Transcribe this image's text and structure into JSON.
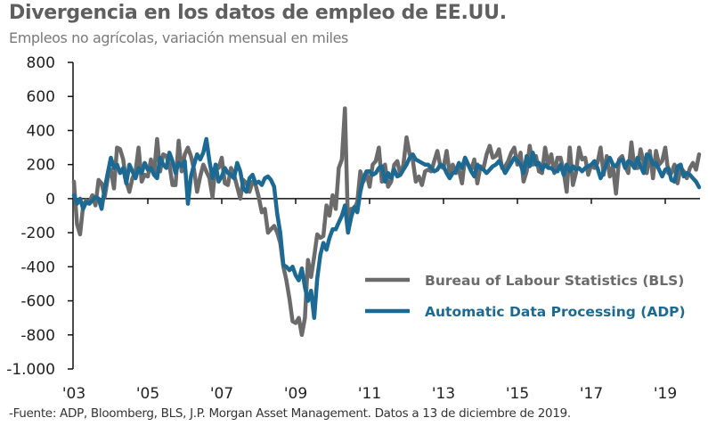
{
  "title": "Divergencia en los datos de empleo de EE.UU.",
  "subtitle": "Empleos no agrícolas, variación mensual en miles",
  "footer": "-Fuente: ADP, Bloomberg, BLS, J.P. Morgan Asset Management. Datos a 13 de diciembre de 2019.",
  "chart_data": {
    "type": "line",
    "title": "Divergencia en los datos de empleo de EE.UU.",
    "subtitle": "Empleos no agrícolas, variación mensual en miles",
    "xlabel": "",
    "ylabel": "",
    "x_start": "2003-01",
    "x_end": "2019-11",
    "x_frequency": "monthly",
    "xlim": [
      2003,
      2020
    ],
    "ylim": [
      -1000,
      800
    ],
    "y_ticks": [
      800,
      600,
      400,
      200,
      0,
      -200,
      -400,
      -600,
      -800,
      -1000
    ],
    "y_tick_labels": [
      "800",
      "600",
      "400",
      "200",
      "0",
      "-200",
      "-400",
      "-600",
      "-800",
      "-1.000"
    ],
    "x_ticks": [
      2003,
      2005,
      2007,
      2009,
      2011,
      2013,
      2015,
      2017,
      2019
    ],
    "x_tick_labels": [
      "'03",
      "'05",
      "'07",
      "'09",
      "'11",
      "'13",
      "'15",
      "'17",
      "'19"
    ],
    "grid": false,
    "legend_position": "bottom-right",
    "series": [
      {
        "name": "Bureau of Labour Statistics (BLS)",
        "color": "#6b6b6b",
        "values": [
          100,
          -150,
          -210,
          -40,
          -10,
          -20,
          20,
          -40,
          110,
          90,
          10,
          120,
          170,
          60,
          300,
          290,
          230,
          100,
          40,
          120,
          160,
          300,
          100,
          140,
          130,
          230,
          140,
          350,
          160,
          260,
          250,
          200,
          80,
          80,
          340,
          160,
          260,
          300,
          250,
          170,
          40,
          130,
          200,
          160,
          120,
          10,
          200,
          180,
          240,
          90,
          80,
          180,
          140,
          70,
          0,
          110,
          90,
          40,
          100,
          80,
          10,
          -80,
          -60,
          -200,
          -180,
          -160,
          -200,
          -260,
          -400,
          -480,
          -590,
          -720,
          -730,
          -700,
          -800,
          -700,
          -360,
          -460,
          -340,
          -210,
          -230,
          -220,
          -40,
          -100,
          20,
          -60,
          180,
          230,
          530,
          -160,
          -60,
          -60,
          -20,
          160,
          100,
          150,
          70,
          200,
          220,
          300,
          100,
          200,
          70,
          100,
          200,
          220,
          140,
          200,
          360,
          260,
          230,
          100,
          130,
          80,
          160,
          170,
          160,
          220,
          280,
          190,
          180,
          280,
          150,
          200,
          150,
          170,
          90,
          240,
          200,
          170,
          230,
          90,
          190,
          180,
          260,
          310,
          240,
          250,
          290,
          180,
          190,
          220,
          270,
          300,
          200,
          270,
          100,
          160,
          310,
          200,
          250,
          160,
          150,
          300,
          200,
          260,
          150,
          240,
          240,
          160,
          40,
          300,
          80,
          150,
          300,
          230,
          240,
          140,
          200,
          180,
          210,
          300,
          140,
          250,
          130,
          190,
          30,
          230,
          250,
          190,
          150,
          330,
          180,
          180,
          290,
          210,
          150,
          280,
          120,
          280,
          200,
          220,
          300,
          150,
          150,
          200,
          90,
          180,
          160,
          120,
          180,
          210,
          170,
          260
        ]
      },
      {
        "name": "Automatic Data Processing  (ADP)",
        "color": "#1c6a93",
        "values": [
          20,
          -30,
          0,
          -60,
          -20,
          -30,
          -10,
          10,
          0,
          -60,
          60,
          150,
          240,
          180,
          200,
          150,
          180,
          90,
          200,
          160,
          120,
          180,
          150,
          210,
          170,
          180,
          140,
          120,
          240,
          200,
          180,
          270,
          220,
          150,
          210,
          190,
          220,
          -30,
          130,
          200,
          260,
          230,
          270,
          350,
          220,
          120,
          200,
          100,
          130,
          180,
          150,
          140,
          120,
          210,
          160,
          60,
          40,
          120,
          140,
          90,
          100,
          80,
          120,
          130,
          110,
          70,
          -90,
          -200,
          -390,
          -400,
          -420,
          -400,
          -450,
          -480,
          -410,
          -520,
          -600,
          -540,
          -700,
          -470,
          -330,
          -260,
          -300,
          -230,
          -180,
          -180,
          -140,
          -100,
          -40,
          -200,
          -110,
          -50,
          -80,
          40,
          120,
          160,
          160,
          140,
          150,
          180,
          190,
          100,
          150,
          120,
          170,
          130,
          140,
          170,
          200,
          240,
          260,
          230,
          220,
          210,
          200,
          200,
          180,
          160,
          170,
          200,
          190,
          150,
          120,
          150,
          160,
          210,
          180,
          240,
          200,
          160,
          130,
          200,
          180,
          170,
          150,
          170,
          190,
          200,
          220,
          190,
          150,
          180,
          210,
          240,
          220,
          200,
          150,
          250,
          190,
          270,
          200,
          210,
          170,
          200,
          180,
          180,
          160,
          160,
          200,
          140,
          200,
          160,
          190,
          170,
          180,
          160,
          180,
          190,
          200,
          220,
          180,
          120,
          160,
          210,
          240,
          200,
          190,
          220,
          230,
          180,
          220,
          210,
          180,
          240,
          190,
          150,
          260,
          250,
          200,
          210,
          170,
          130,
          170,
          180,
          110,
          100,
          190,
          200,
          130,
          150,
          140,
          120,
          100,
          67
        ]
      }
    ]
  },
  "legend": {
    "items": [
      {
        "label": "Bureau of Labour Statistics (BLS)",
        "color": "#6b6b6b"
      },
      {
        "label": "Automatic Data Processing  (ADP)",
        "color": "#1c6a93"
      }
    ]
  }
}
